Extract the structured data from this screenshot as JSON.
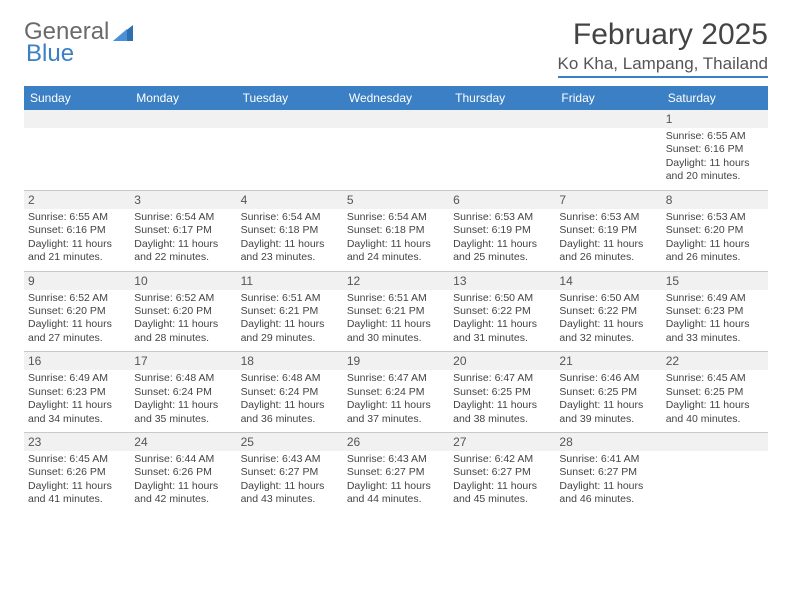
{
  "logo": {
    "general": "General",
    "blue": "Blue"
  },
  "header": {
    "month_title": "February 2025",
    "location": "Ko Kha, Lampang, Thailand"
  },
  "calendar": {
    "day_headers": [
      "Sunday",
      "Monday",
      "Tuesday",
      "Wednesday",
      "Thursday",
      "Friday",
      "Saturday"
    ],
    "colors": {
      "header_bg": "#3b7fc4",
      "header_text": "#ffffff",
      "daynum_bg": "#f1f1f1",
      "border": "#c9c9c9",
      "text": "#444444"
    },
    "weeks": [
      [
        null,
        null,
        null,
        null,
        null,
        null,
        {
          "n": "1",
          "sunrise": "Sunrise: 6:55 AM",
          "sunset": "Sunset: 6:16 PM",
          "daylight": "Daylight: 11 hours and 20 minutes."
        }
      ],
      [
        {
          "n": "2",
          "sunrise": "Sunrise: 6:55 AM",
          "sunset": "Sunset: 6:16 PM",
          "daylight": "Daylight: 11 hours and 21 minutes."
        },
        {
          "n": "3",
          "sunrise": "Sunrise: 6:54 AM",
          "sunset": "Sunset: 6:17 PM",
          "daylight": "Daylight: 11 hours and 22 minutes."
        },
        {
          "n": "4",
          "sunrise": "Sunrise: 6:54 AM",
          "sunset": "Sunset: 6:18 PM",
          "daylight": "Daylight: 11 hours and 23 minutes."
        },
        {
          "n": "5",
          "sunrise": "Sunrise: 6:54 AM",
          "sunset": "Sunset: 6:18 PM",
          "daylight": "Daylight: 11 hours and 24 minutes."
        },
        {
          "n": "6",
          "sunrise": "Sunrise: 6:53 AM",
          "sunset": "Sunset: 6:19 PM",
          "daylight": "Daylight: 11 hours and 25 minutes."
        },
        {
          "n": "7",
          "sunrise": "Sunrise: 6:53 AM",
          "sunset": "Sunset: 6:19 PM",
          "daylight": "Daylight: 11 hours and 26 minutes."
        },
        {
          "n": "8",
          "sunrise": "Sunrise: 6:53 AM",
          "sunset": "Sunset: 6:20 PM",
          "daylight": "Daylight: 11 hours and 26 minutes."
        }
      ],
      [
        {
          "n": "9",
          "sunrise": "Sunrise: 6:52 AM",
          "sunset": "Sunset: 6:20 PM",
          "daylight": "Daylight: 11 hours and 27 minutes."
        },
        {
          "n": "10",
          "sunrise": "Sunrise: 6:52 AM",
          "sunset": "Sunset: 6:20 PM",
          "daylight": "Daylight: 11 hours and 28 minutes."
        },
        {
          "n": "11",
          "sunrise": "Sunrise: 6:51 AM",
          "sunset": "Sunset: 6:21 PM",
          "daylight": "Daylight: 11 hours and 29 minutes."
        },
        {
          "n": "12",
          "sunrise": "Sunrise: 6:51 AM",
          "sunset": "Sunset: 6:21 PM",
          "daylight": "Daylight: 11 hours and 30 minutes."
        },
        {
          "n": "13",
          "sunrise": "Sunrise: 6:50 AM",
          "sunset": "Sunset: 6:22 PM",
          "daylight": "Daylight: 11 hours and 31 minutes."
        },
        {
          "n": "14",
          "sunrise": "Sunrise: 6:50 AM",
          "sunset": "Sunset: 6:22 PM",
          "daylight": "Daylight: 11 hours and 32 minutes."
        },
        {
          "n": "15",
          "sunrise": "Sunrise: 6:49 AM",
          "sunset": "Sunset: 6:23 PM",
          "daylight": "Daylight: 11 hours and 33 minutes."
        }
      ],
      [
        {
          "n": "16",
          "sunrise": "Sunrise: 6:49 AM",
          "sunset": "Sunset: 6:23 PM",
          "daylight": "Daylight: 11 hours and 34 minutes."
        },
        {
          "n": "17",
          "sunrise": "Sunrise: 6:48 AM",
          "sunset": "Sunset: 6:24 PM",
          "daylight": "Daylight: 11 hours and 35 minutes."
        },
        {
          "n": "18",
          "sunrise": "Sunrise: 6:48 AM",
          "sunset": "Sunset: 6:24 PM",
          "daylight": "Daylight: 11 hours and 36 minutes."
        },
        {
          "n": "19",
          "sunrise": "Sunrise: 6:47 AM",
          "sunset": "Sunset: 6:24 PM",
          "daylight": "Daylight: 11 hours and 37 minutes."
        },
        {
          "n": "20",
          "sunrise": "Sunrise: 6:47 AM",
          "sunset": "Sunset: 6:25 PM",
          "daylight": "Daylight: 11 hours and 38 minutes."
        },
        {
          "n": "21",
          "sunrise": "Sunrise: 6:46 AM",
          "sunset": "Sunset: 6:25 PM",
          "daylight": "Daylight: 11 hours and 39 minutes."
        },
        {
          "n": "22",
          "sunrise": "Sunrise: 6:45 AM",
          "sunset": "Sunset: 6:25 PM",
          "daylight": "Daylight: 11 hours and 40 minutes."
        }
      ],
      [
        {
          "n": "23",
          "sunrise": "Sunrise: 6:45 AM",
          "sunset": "Sunset: 6:26 PM",
          "daylight": "Daylight: 11 hours and 41 minutes."
        },
        {
          "n": "24",
          "sunrise": "Sunrise: 6:44 AM",
          "sunset": "Sunset: 6:26 PM",
          "daylight": "Daylight: 11 hours and 42 minutes."
        },
        {
          "n": "25",
          "sunrise": "Sunrise: 6:43 AM",
          "sunset": "Sunset: 6:27 PM",
          "daylight": "Daylight: 11 hours and 43 minutes."
        },
        {
          "n": "26",
          "sunrise": "Sunrise: 6:43 AM",
          "sunset": "Sunset: 6:27 PM",
          "daylight": "Daylight: 11 hours and 44 minutes."
        },
        {
          "n": "27",
          "sunrise": "Sunrise: 6:42 AM",
          "sunset": "Sunset: 6:27 PM",
          "daylight": "Daylight: 11 hours and 45 minutes."
        },
        {
          "n": "28",
          "sunrise": "Sunrise: 6:41 AM",
          "sunset": "Sunset: 6:27 PM",
          "daylight": "Daylight: 11 hours and 46 minutes."
        },
        null
      ]
    ]
  }
}
